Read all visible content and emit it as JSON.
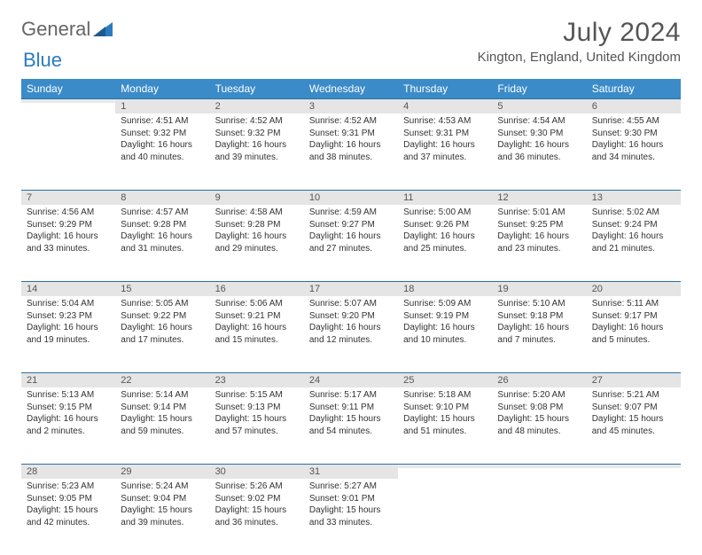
{
  "logo": {
    "text1": "General",
    "text2": "Blue"
  },
  "title": "July 2024",
  "location": "Kington, England, United Kingdom",
  "colors": {
    "header_bg": "#3b8bc9",
    "daynum_bg": "#e5e5e5",
    "rule": "#2b6fa5",
    "text": "#333333",
    "logo_blue": "#2b7bbf"
  },
  "weekdays": [
    "Sunday",
    "Monday",
    "Tuesday",
    "Wednesday",
    "Thursday",
    "Friday",
    "Saturday"
  ],
  "weeks": [
    [
      {
        "day": "",
        "lines": []
      },
      {
        "day": "1",
        "lines": [
          "Sunrise: 4:51 AM",
          "Sunset: 9:32 PM",
          "Daylight: 16 hours and 40 minutes."
        ]
      },
      {
        "day": "2",
        "lines": [
          "Sunrise: 4:52 AM",
          "Sunset: 9:32 PM",
          "Daylight: 16 hours and 39 minutes."
        ]
      },
      {
        "day": "3",
        "lines": [
          "Sunrise: 4:52 AM",
          "Sunset: 9:31 PM",
          "Daylight: 16 hours and 38 minutes."
        ]
      },
      {
        "day": "4",
        "lines": [
          "Sunrise: 4:53 AM",
          "Sunset: 9:31 PM",
          "Daylight: 16 hours and 37 minutes."
        ]
      },
      {
        "day": "5",
        "lines": [
          "Sunrise: 4:54 AM",
          "Sunset: 9:30 PM",
          "Daylight: 16 hours and 36 minutes."
        ]
      },
      {
        "day": "6",
        "lines": [
          "Sunrise: 4:55 AM",
          "Sunset: 9:30 PM",
          "Daylight: 16 hours and 34 minutes."
        ]
      }
    ],
    [
      {
        "day": "7",
        "lines": [
          "Sunrise: 4:56 AM",
          "Sunset: 9:29 PM",
          "Daylight: 16 hours and 33 minutes."
        ]
      },
      {
        "day": "8",
        "lines": [
          "Sunrise: 4:57 AM",
          "Sunset: 9:28 PM",
          "Daylight: 16 hours and 31 minutes."
        ]
      },
      {
        "day": "9",
        "lines": [
          "Sunrise: 4:58 AM",
          "Sunset: 9:28 PM",
          "Daylight: 16 hours and 29 minutes."
        ]
      },
      {
        "day": "10",
        "lines": [
          "Sunrise: 4:59 AM",
          "Sunset: 9:27 PM",
          "Daylight: 16 hours and 27 minutes."
        ]
      },
      {
        "day": "11",
        "lines": [
          "Sunrise: 5:00 AM",
          "Sunset: 9:26 PM",
          "Daylight: 16 hours and 25 minutes."
        ]
      },
      {
        "day": "12",
        "lines": [
          "Sunrise: 5:01 AM",
          "Sunset: 9:25 PM",
          "Daylight: 16 hours and 23 minutes."
        ]
      },
      {
        "day": "13",
        "lines": [
          "Sunrise: 5:02 AM",
          "Sunset: 9:24 PM",
          "Daylight: 16 hours and 21 minutes."
        ]
      }
    ],
    [
      {
        "day": "14",
        "lines": [
          "Sunrise: 5:04 AM",
          "Sunset: 9:23 PM",
          "Daylight: 16 hours and 19 minutes."
        ]
      },
      {
        "day": "15",
        "lines": [
          "Sunrise: 5:05 AM",
          "Sunset: 9:22 PM",
          "Daylight: 16 hours and 17 minutes."
        ]
      },
      {
        "day": "16",
        "lines": [
          "Sunrise: 5:06 AM",
          "Sunset: 9:21 PM",
          "Daylight: 16 hours and 15 minutes."
        ]
      },
      {
        "day": "17",
        "lines": [
          "Sunrise: 5:07 AM",
          "Sunset: 9:20 PM",
          "Daylight: 16 hours and 12 minutes."
        ]
      },
      {
        "day": "18",
        "lines": [
          "Sunrise: 5:09 AM",
          "Sunset: 9:19 PM",
          "Daylight: 16 hours and 10 minutes."
        ]
      },
      {
        "day": "19",
        "lines": [
          "Sunrise: 5:10 AM",
          "Sunset: 9:18 PM",
          "Daylight: 16 hours and 7 minutes."
        ]
      },
      {
        "day": "20",
        "lines": [
          "Sunrise: 5:11 AM",
          "Sunset: 9:17 PM",
          "Daylight: 16 hours and 5 minutes."
        ]
      }
    ],
    [
      {
        "day": "21",
        "lines": [
          "Sunrise: 5:13 AM",
          "Sunset: 9:15 PM",
          "Daylight: 16 hours and 2 minutes."
        ]
      },
      {
        "day": "22",
        "lines": [
          "Sunrise: 5:14 AM",
          "Sunset: 9:14 PM",
          "Daylight: 15 hours and 59 minutes."
        ]
      },
      {
        "day": "23",
        "lines": [
          "Sunrise: 5:15 AM",
          "Sunset: 9:13 PM",
          "Daylight: 15 hours and 57 minutes."
        ]
      },
      {
        "day": "24",
        "lines": [
          "Sunrise: 5:17 AM",
          "Sunset: 9:11 PM",
          "Daylight: 15 hours and 54 minutes."
        ]
      },
      {
        "day": "25",
        "lines": [
          "Sunrise: 5:18 AM",
          "Sunset: 9:10 PM",
          "Daylight: 15 hours and 51 minutes."
        ]
      },
      {
        "day": "26",
        "lines": [
          "Sunrise: 5:20 AM",
          "Sunset: 9:08 PM",
          "Daylight: 15 hours and 48 minutes."
        ]
      },
      {
        "day": "27",
        "lines": [
          "Sunrise: 5:21 AM",
          "Sunset: 9:07 PM",
          "Daylight: 15 hours and 45 minutes."
        ]
      }
    ],
    [
      {
        "day": "28",
        "lines": [
          "Sunrise: 5:23 AM",
          "Sunset: 9:05 PM",
          "Daylight: 15 hours and 42 minutes."
        ]
      },
      {
        "day": "29",
        "lines": [
          "Sunrise: 5:24 AM",
          "Sunset: 9:04 PM",
          "Daylight: 15 hours and 39 minutes."
        ]
      },
      {
        "day": "30",
        "lines": [
          "Sunrise: 5:26 AM",
          "Sunset: 9:02 PM",
          "Daylight: 15 hours and 36 minutes."
        ]
      },
      {
        "day": "31",
        "lines": [
          "Sunrise: 5:27 AM",
          "Sunset: 9:01 PM",
          "Daylight: 15 hours and 33 minutes."
        ]
      },
      {
        "day": "",
        "lines": []
      },
      {
        "day": "",
        "lines": []
      },
      {
        "day": "",
        "lines": []
      }
    ]
  ]
}
